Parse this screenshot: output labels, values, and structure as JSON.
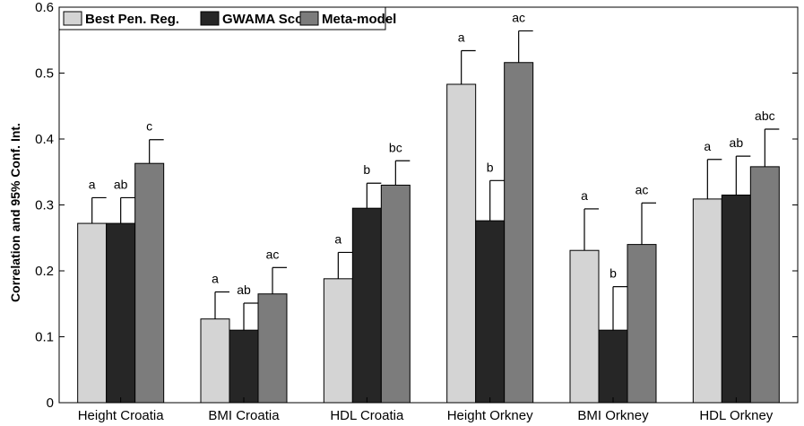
{
  "chart_data": {
    "type": "bar",
    "title": "",
    "xlabel": "",
    "ylabel": "Correlation and 95% Conf. Int.",
    "ylim": [
      0,
      0.6
    ],
    "yticks": [
      "0",
      "0.1",
      "0.2",
      "0.3",
      "0.4",
      "0.5",
      "0.6"
    ],
    "grid": false,
    "legend_position": "top-left",
    "categories": [
      "Height Croatia",
      "BMI Croatia",
      "HDL Croatia",
      "Height Orkney",
      "BMI Orkney",
      "HDL Orkney"
    ],
    "series": [
      {
        "name": "Best Pen. Reg.",
        "color": "#d4d4d4",
        "values": [
          0.272,
          0.127,
          0.188,
          0.483,
          0.231,
          0.309
        ],
        "err": [
          0.039,
          0.041,
          0.04,
          0.051,
          0.063,
          0.06
        ],
        "labels": [
          "a",
          "a",
          "a",
          "a",
          "a",
          "a"
        ]
      },
      {
        "name": "GWAMA Score",
        "color": "#262626",
        "values": [
          0.272,
          0.11,
          0.295,
          0.276,
          0.11,
          0.315
        ],
        "err": [
          0.039,
          0.041,
          0.038,
          0.061,
          0.066,
          0.059
        ],
        "labels": [
          "ab",
          "ab",
          "b",
          "b",
          "b",
          "ab"
        ]
      },
      {
        "name": "Meta-model",
        "color": "#7c7c7c",
        "values": [
          0.363,
          0.165,
          0.33,
          0.516,
          0.24,
          0.358
        ],
        "err": [
          0.036,
          0.04,
          0.037,
          0.048,
          0.063,
          0.057
        ],
        "labels": [
          "c",
          "ac",
          "bc",
          "ac",
          "ac",
          "abc"
        ]
      }
    ]
  }
}
